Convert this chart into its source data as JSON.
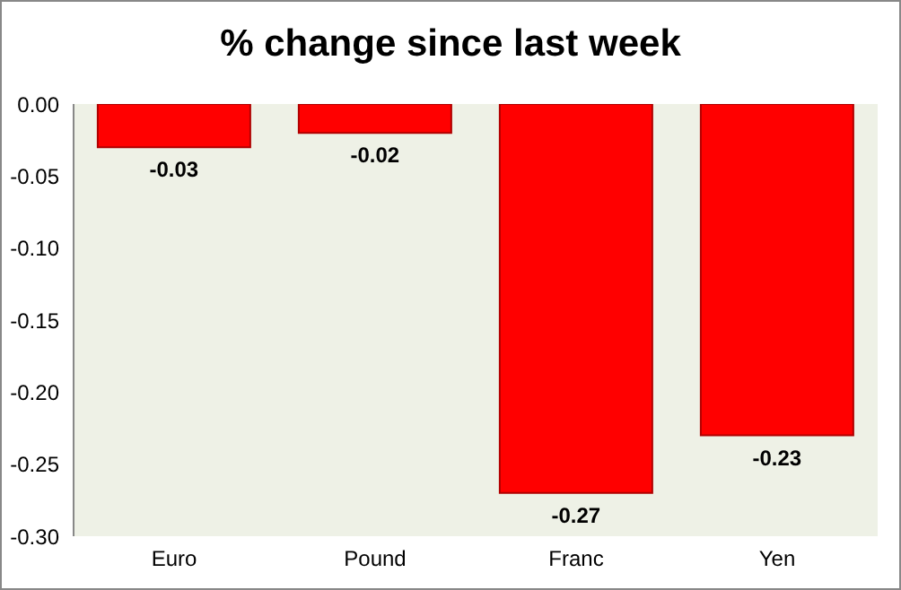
{
  "chart_data": {
    "type": "bar",
    "title": "% change since last week",
    "categories": [
      "Euro",
      "Pound",
      "Franc",
      "Yen"
    ],
    "values": [
      -0.03,
      -0.02,
      -0.27,
      -0.23
    ],
    "color": "#ff0000",
    "ylim": [
      -0.3,
      0
    ],
    "yticks": [
      {
        "value": 0,
        "label": "0.00"
      },
      {
        "value": -0.05,
        "label": "-0.05"
      },
      {
        "value": -0.1,
        "label": "-0.10"
      },
      {
        "value": -0.15,
        "label": "-0.15"
      },
      {
        "value": -0.2,
        "label": "-0.20"
      },
      {
        "value": -0.25,
        "label": "-0.25"
      },
      {
        "value": -0.3,
        "label": "-0.30"
      }
    ],
    "data_labels": true,
    "grid": false
  }
}
